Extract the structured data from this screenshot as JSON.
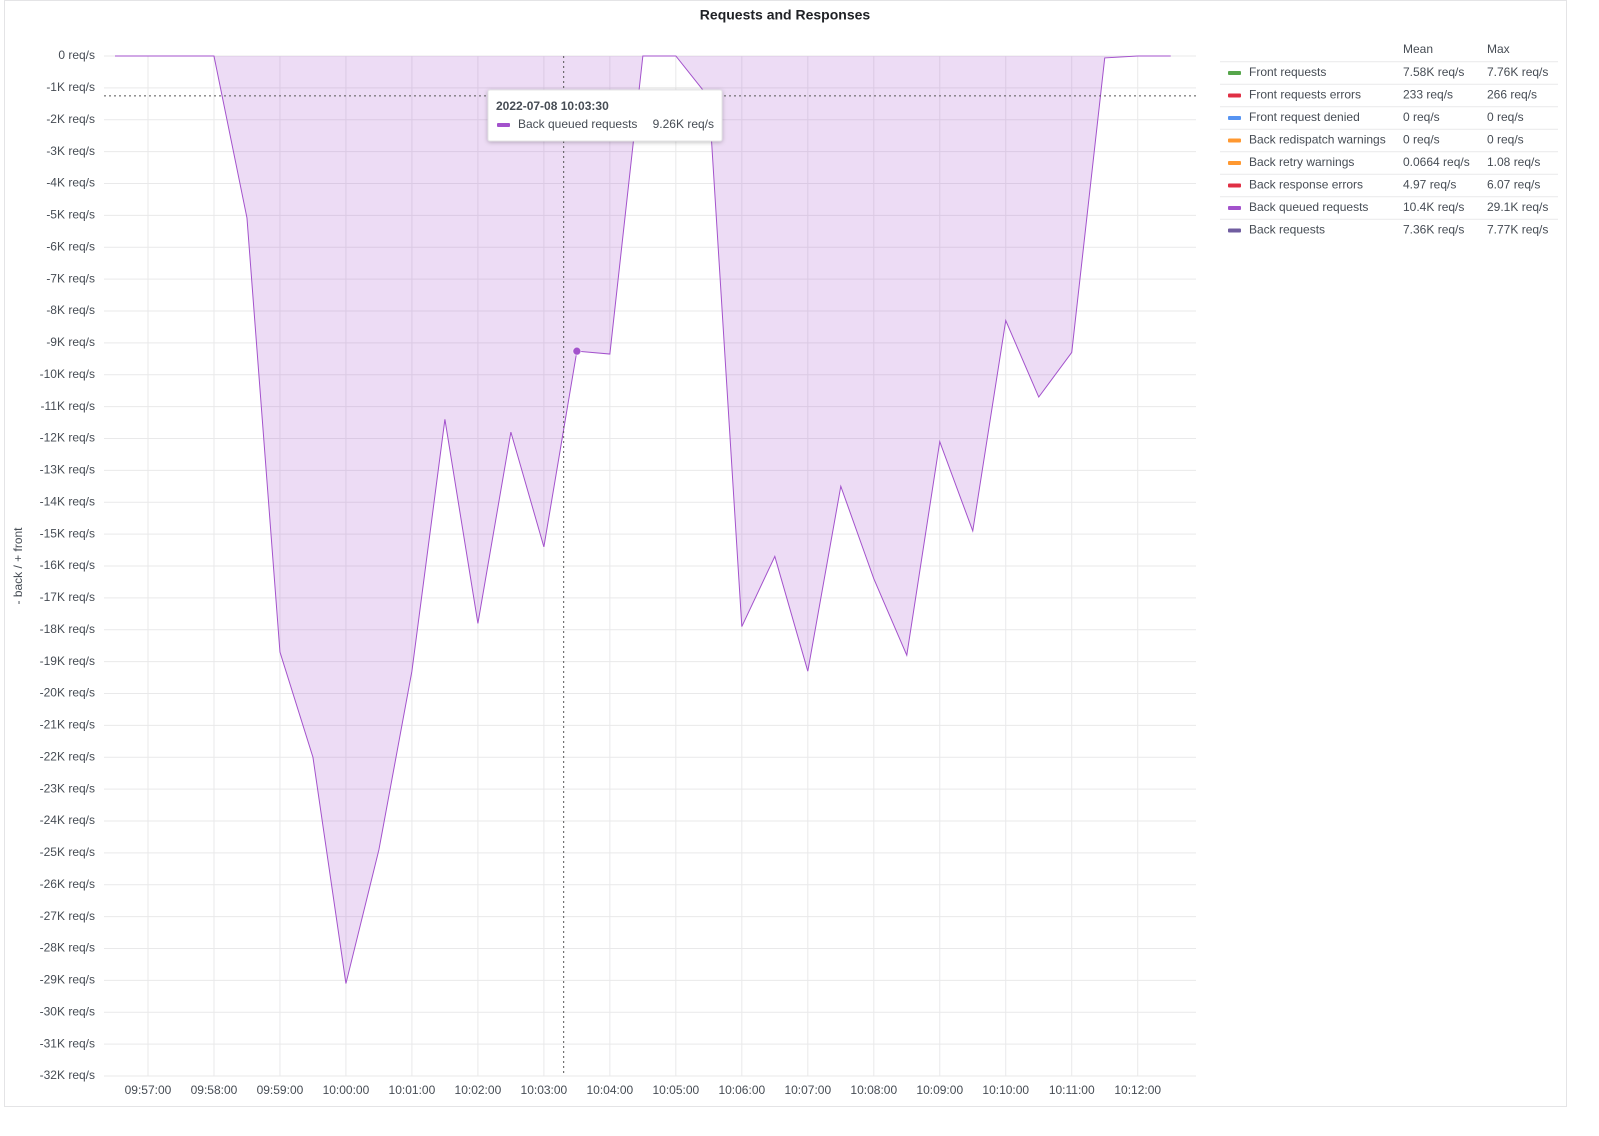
{
  "chart_data": {
    "type": "area",
    "title": "Requests and Responses",
    "y_label": "- back / + front",
    "x": [
      "09:56:30",
      "09:57:00",
      "09:57:30",
      "09:58:00",
      "09:58:30",
      "09:59:00",
      "09:59:30",
      "10:00:00",
      "10:00:30",
      "10:01:00",
      "10:01:30",
      "10:02:00",
      "10:02:30",
      "10:03:00",
      "10:03:30",
      "10:04:00",
      "10:04:30",
      "10:05:00",
      "10:05:30",
      "10:06:00",
      "10:06:30",
      "10:07:00",
      "10:07:30",
      "10:08:00",
      "10:08:30",
      "10:09:00",
      "10:09:30",
      "10:10:00",
      "10:10:30",
      "10:11:00",
      "10:11:30",
      "10:12:00",
      "10:12:30"
    ],
    "xlim": [
      "09:56:20",
      "10:12:53"
    ],
    "xticks": [
      "09:57:00",
      "09:58:00",
      "09:59:00",
      "10:00:00",
      "10:01:00",
      "10:02:00",
      "10:03:00",
      "10:04:00",
      "10:05:00",
      "10:06:00",
      "10:07:00",
      "10:08:00",
      "10:09:00",
      "10:10:00",
      "10:11:00",
      "10:12:00"
    ],
    "ylim": [
      -32000,
      0
    ],
    "yticks": [
      {
        "value": 0,
        "label": "0 req/s"
      },
      {
        "value": -1000,
        "label": "-1K req/s"
      },
      {
        "value": -2000,
        "label": "-2K req/s"
      },
      {
        "value": -3000,
        "label": "-3K req/s"
      },
      {
        "value": -4000,
        "label": "-4K req/s"
      },
      {
        "value": -5000,
        "label": "-5K req/s"
      },
      {
        "value": -6000,
        "label": "-6K req/s"
      },
      {
        "value": -7000,
        "label": "-7K req/s"
      },
      {
        "value": -8000,
        "label": "-8K req/s"
      },
      {
        "value": -9000,
        "label": "-9K req/s"
      },
      {
        "value": -10000,
        "label": "-10K req/s"
      },
      {
        "value": -11000,
        "label": "-11K req/s"
      },
      {
        "value": -12000,
        "label": "-12K req/s"
      },
      {
        "value": -13000,
        "label": "-13K req/s"
      },
      {
        "value": -14000,
        "label": "-14K req/s"
      },
      {
        "value": -15000,
        "label": "-15K req/s"
      },
      {
        "value": -16000,
        "label": "-16K req/s"
      },
      {
        "value": -17000,
        "label": "-17K req/s"
      },
      {
        "value": -18000,
        "label": "-18K req/s"
      },
      {
        "value": -19000,
        "label": "-19K req/s"
      },
      {
        "value": -20000,
        "label": "-20K req/s"
      },
      {
        "value": -21000,
        "label": "-21K req/s"
      },
      {
        "value": -22000,
        "label": "-22K req/s"
      },
      {
        "value": -23000,
        "label": "-23K req/s"
      },
      {
        "value": -24000,
        "label": "-24K req/s"
      },
      {
        "value": -25000,
        "label": "-25K req/s"
      },
      {
        "value": -26000,
        "label": "-26K req/s"
      },
      {
        "value": -27000,
        "label": "-27K req/s"
      },
      {
        "value": -28000,
        "label": "-28K req/s"
      },
      {
        "value": -29000,
        "label": "-29K req/s"
      },
      {
        "value": -30000,
        "label": "-30K req/s"
      },
      {
        "value": -31000,
        "label": "-31K req/s"
      },
      {
        "value": -32000,
        "label": "-32K req/s"
      }
    ],
    "grid": true,
    "legend_columns": [
      "Mean",
      "Max"
    ],
    "series": [
      {
        "name": "Front requests",
        "color": "#56a64b",
        "hidden": true,
        "mean": "7.58K req/s",
        "max": "7.76K req/s"
      },
      {
        "name": "Front requests errors",
        "color": "#e02f44",
        "hidden": true,
        "mean": "233 req/s",
        "max": "266 req/s"
      },
      {
        "name": "Front request denied",
        "color": "#5794f2",
        "hidden": true,
        "mean": "0 req/s",
        "max": "0 req/s"
      },
      {
        "name": "Back redispatch warnings",
        "color": "#ff9830",
        "hidden": true,
        "mean": "0 req/s",
        "max": "0 req/s"
      },
      {
        "name": "Back retry warnings",
        "color": "#ff9830",
        "hidden": true,
        "mean": "0.0664 req/s",
        "max": "1.08 req/s"
      },
      {
        "name": "Back response errors",
        "color": "#e02f44",
        "hidden": true,
        "mean": "4.97 req/s",
        "max": "6.07 req/s"
      },
      {
        "name": "Back queued requests",
        "color": "#a352cc",
        "hidden": false,
        "mean": "10.4K req/s",
        "max": "29.1K req/s",
        "values": [
          0,
          0,
          0,
          0,
          -5080,
          -18700,
          -22000,
          -29100,
          -24900,
          -19300,
          -11400,
          -17800,
          -11800,
          -15400,
          -9260,
          -9350,
          0,
          0,
          -1300,
          -17900,
          -15700,
          -19300,
          -13500,
          -16400,
          -18800,
          -12100,
          -14900,
          -8300,
          -10700,
          -9300,
          -60,
          0,
          0
        ]
      },
      {
        "name": "Back requests",
        "color": "#705da0",
        "hidden": true,
        "mean": "7.36K req/s",
        "max": "7.77K req/s"
      }
    ],
    "tooltip": {
      "time": "2022-07-08 10:03:30",
      "series": 6,
      "index": 14,
      "value": "9.26K req/s"
    },
    "crosshair": {
      "x": "10:03:18",
      "y": -1250
    }
  }
}
